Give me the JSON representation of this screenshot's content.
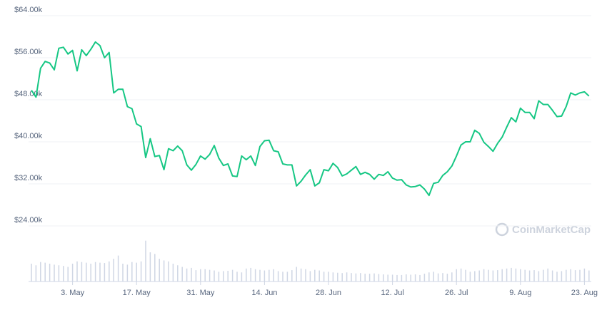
{
  "chart_data": {
    "type": "line",
    "categories": [
      null,
      null,
      null,
      null,
      null,
      null,
      null,
      null,
      null,
      "3. May",
      null,
      null,
      null,
      null,
      null,
      null,
      null,
      null,
      null,
      null,
      null,
      null,
      null,
      "17. May",
      null,
      null,
      null,
      null,
      null,
      null,
      null,
      null,
      null,
      null,
      null,
      null,
      null,
      "31. May",
      null,
      null,
      null,
      null,
      null,
      null,
      null,
      null,
      null,
      null,
      null,
      null,
      null,
      "14. Jun",
      null,
      null,
      null,
      null,
      null,
      null,
      null,
      null,
      null,
      null,
      null,
      null,
      null,
      "28. Jun",
      null,
      null,
      null,
      null,
      null,
      null,
      null,
      null,
      null,
      null,
      null,
      null,
      null,
      "12. Jul",
      null,
      null,
      null,
      null,
      null,
      null,
      null,
      null,
      null,
      null,
      null,
      null,
      null,
      "26. Jul",
      null,
      null,
      null,
      null,
      null,
      null,
      null,
      null,
      null,
      null,
      null,
      null,
      null,
      "9. Aug",
      null,
      null,
      null,
      null,
      null,
      null,
      null,
      null,
      null,
      null,
      null,
      null,
      null,
      "23. Aug",
      null
    ],
    "series": [
      {
        "color": "#16c784",
        "values": [
          49800,
          48500,
          54000,
          55300,
          55000,
          53700,
          57800,
          58000,
          56700,
          57400,
          53500,
          57500,
          56400,
          57600,
          59000,
          58300,
          56000,
          57000,
          49300,
          50000,
          50000,
          46700,
          46300,
          43400,
          42900,
          37000,
          40600,
          37200,
          37400,
          34700,
          38700,
          38300,
          39200,
          38300,
          35600,
          34600,
          35700,
          37300,
          36700,
          37600,
          39300,
          36900,
          35500,
          35800,
          33500,
          33400,
          37300,
          36600,
          37300,
          35500,
          39100,
          40200,
          40300,
          38300,
          38100,
          35800,
          35600,
          35600,
          31600,
          32500,
          33700,
          34700,
          31600,
          32200,
          34700,
          34500,
          35900,
          35100,
          33500,
          33900,
          34600,
          35300,
          33800,
          34200,
          33800,
          32900,
          33800,
          33600,
          34300,
          33100,
          32700,
          32800,
          31800,
          31400,
          31500,
          31800,
          31000,
          29800,
          32100,
          32300,
          33600,
          34300,
          35400,
          37300,
          39400,
          40000,
          40000,
          42200,
          41600,
          39900,
          39100,
          38200,
          39700,
          40900,
          42800,
          44600,
          43800,
          46400,
          45600,
          45600,
          44400,
          47800,
          47100,
          47100,
          46000,
          44800,
          44900,
          46700,
          49300,
          48900,
          49300,
          49500,
          48700
        ]
      },
      {
        "color": "#cfd6e4",
        "axis": "y2",
        "values": [
          55,
          50,
          60,
          58,
          55,
          52,
          50,
          48,
          45,
          55,
          62,
          60,
          58,
          55,
          60,
          58,
          57,
          62,
          70,
          80,
          55,
          52,
          60,
          58,
          62,
          126,
          90,
          85,
          70,
          65,
          62,
          55,
          50,
          45,
          40,
          42,
          35,
          38,
          38,
          36,
          34,
          30,
          32,
          33,
          36,
          30,
          28,
          40,
          42,
          38,
          36,
          34,
          36,
          38,
          32,
          30,
          30,
          35,
          45,
          40,
          38,
          32,
          36,
          34,
          30,
          30,
          28,
          27,
          26,
          28,
          26,
          25,
          26,
          24,
          24,
          25,
          23,
          22,
          21,
          21,
          20,
          20,
          22,
          21,
          22,
          20,
          24,
          28,
          30,
          25,
          26,
          24,
          28,
          38,
          40,
          36,
          30,
          32,
          34,
          38,
          36,
          34,
          35,
          38,
          40,
          42,
          40,
          38,
          36,
          34,
          35,
          32,
          36,
          40,
          34,
          30,
          32,
          36,
          38,
          35,
          36,
          40,
          34
        ]
      }
    ],
    "ylim": [
      24000,
      64000
    ],
    "yticks": [
      {
        "value": 24000,
        "label": "$24.00k"
      },
      {
        "value": 32000,
        "label": "$32.00k"
      },
      {
        "value": 40000,
        "label": "$40.00k"
      },
      {
        "value": 48000,
        "label": "$48.00k"
      },
      {
        "value": 56000,
        "label": "$56.00k"
      },
      {
        "value": 64000,
        "label": "$64.00k"
      }
    ],
    "y2lim": [
      0,
      820
    ],
    "grid": true,
    "watermark": "CoinMarketCap"
  }
}
